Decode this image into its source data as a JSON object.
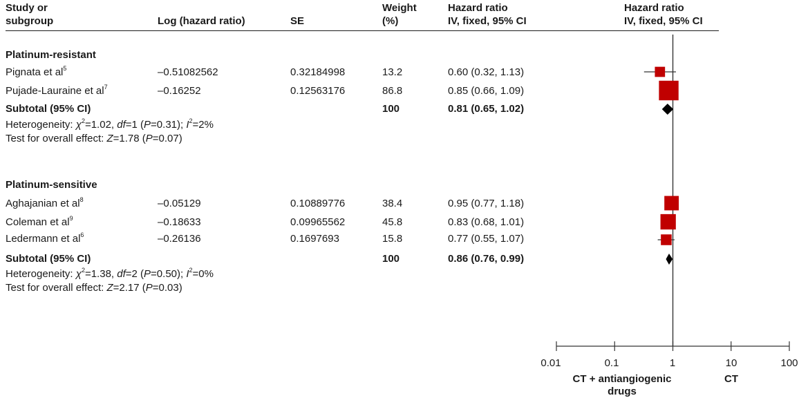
{
  "headers": {
    "study": [
      "Study or",
      "subgroup"
    ],
    "loghr": "Log (hazard ratio)",
    "se": "SE",
    "weight": [
      "Weight",
      "(%)"
    ],
    "hr_text": [
      "Hazard ratio",
      "IV, fixed, 95% CI"
    ],
    "hr_plot": [
      "Hazard ratio",
      "IV, fixed, 95% CI"
    ]
  },
  "groups": [
    {
      "title": "Platinum-resistant",
      "studies": [
        {
          "name": "Pignata et al",
          "ref": "5",
          "loghr": "–0.51082562",
          "se": "0.32184998",
          "weight": "13.2",
          "ci_text": "0.60 (0.32, 1.13)"
        },
        {
          "name": "Pujade-Lauraine et al",
          "ref": "7",
          "loghr": "–0.16252",
          "se": "0.12563176",
          "weight": "86.8",
          "ci_text": "0.85 (0.66, 1.09)"
        }
      ],
      "subtotal": {
        "label": "Subtotal (95% CI)",
        "weight": "100",
        "ci_text": "0.81 (0.65, 1.02)"
      },
      "heterogeneity": {
        "prefix": "Heterogeneity: ",
        "chi": "χ",
        "chi_sup": "2",
        "chi_val": "=1.02, ",
        "df": "df",
        "df_val": "=1 (",
        "p": "P",
        "p_val": "=0.31); ",
        "i": "I",
        "i_sup": "2",
        "i_val": "=2%"
      },
      "overall": {
        "prefix": "Test for overall effect: ",
        "z": "Z",
        "z_val": "=1.78 (",
        "p": "P",
        "p_val": "=0.07)"
      }
    },
    {
      "title": "Platinum-sensitive",
      "studies": [
        {
          "name": "Aghajanian et al",
          "ref": "8",
          "loghr": "–0.05129",
          "se": "0.10889776",
          "weight": "38.4",
          "ci_text": "0.95 (0.77, 1.18)"
        },
        {
          "name": "Coleman et al",
          "ref": "9",
          "loghr": "–0.18633",
          "se": "0.09965562",
          "weight": "45.8",
          "ci_text": "0.83 (0.68, 1.01)"
        },
        {
          "name": "Ledermann et al",
          "ref": "6",
          "loghr": "–0.26136",
          "se": "0.1697693",
          "weight": "15.8",
          "ci_text": "0.77 (0.55, 1.07)"
        }
      ],
      "subtotal": {
        "label": "Subtotal (95% CI)",
        "weight": "100",
        "ci_text": "0.86 (0.76, 0.99)"
      },
      "heterogeneity": {
        "prefix": "Heterogeneity: ",
        "chi": "χ",
        "chi_sup": "2",
        "chi_val": "=1.38, ",
        "df": "df",
        "df_val": "=2 (",
        "p": "P",
        "p_val": "=0.50); ",
        "i": "I",
        "i_sup": "2",
        "i_val": "=0%"
      },
      "overall": {
        "prefix": "Test for overall effect: ",
        "z": "Z",
        "z_val": "=2.17 (",
        "p": "P",
        "p_val": "=0.03)"
      }
    }
  ],
  "axis": {
    "ticks": [
      "0.01",
      "0.1",
      "1",
      "10",
      "100"
    ],
    "left_label": [
      "CT + antiangiogenic",
      "drugs"
    ],
    "right_label": "CT"
  },
  "colors": {
    "marker": "#c00000",
    "diamond": "#000000",
    "line": "#333333"
  },
  "chart_data": {
    "type": "forest",
    "scale": "log",
    "xlim": [
      0.01,
      100
    ],
    "reference_line": 1,
    "groups": [
      {
        "name": "Platinum-resistant",
        "studies": [
          {
            "label": "Pignata et al",
            "hr": 0.6,
            "lo": 0.32,
            "hi": 1.13,
            "weight": 13.2
          },
          {
            "label": "Pujade-Lauraine et al",
            "hr": 0.85,
            "lo": 0.66,
            "hi": 1.09,
            "weight": 86.8
          }
        ],
        "subtotal": {
          "hr": 0.81,
          "lo": 0.65,
          "hi": 1.02
        }
      },
      {
        "name": "Platinum-sensitive",
        "studies": [
          {
            "label": "Aghajanian et al",
            "hr": 0.95,
            "lo": 0.77,
            "hi": 1.18,
            "weight": 38.4
          },
          {
            "label": "Coleman et al",
            "hr": 0.83,
            "lo": 0.68,
            "hi": 1.01,
            "weight": 45.8
          },
          {
            "label": "Ledermann et al",
            "hr": 0.77,
            "lo": 0.55,
            "hi": 1.07,
            "weight": 15.8
          }
        ],
        "subtotal": {
          "hr": 0.86,
          "lo": 0.76,
          "hi": 0.99
        }
      }
    ]
  }
}
